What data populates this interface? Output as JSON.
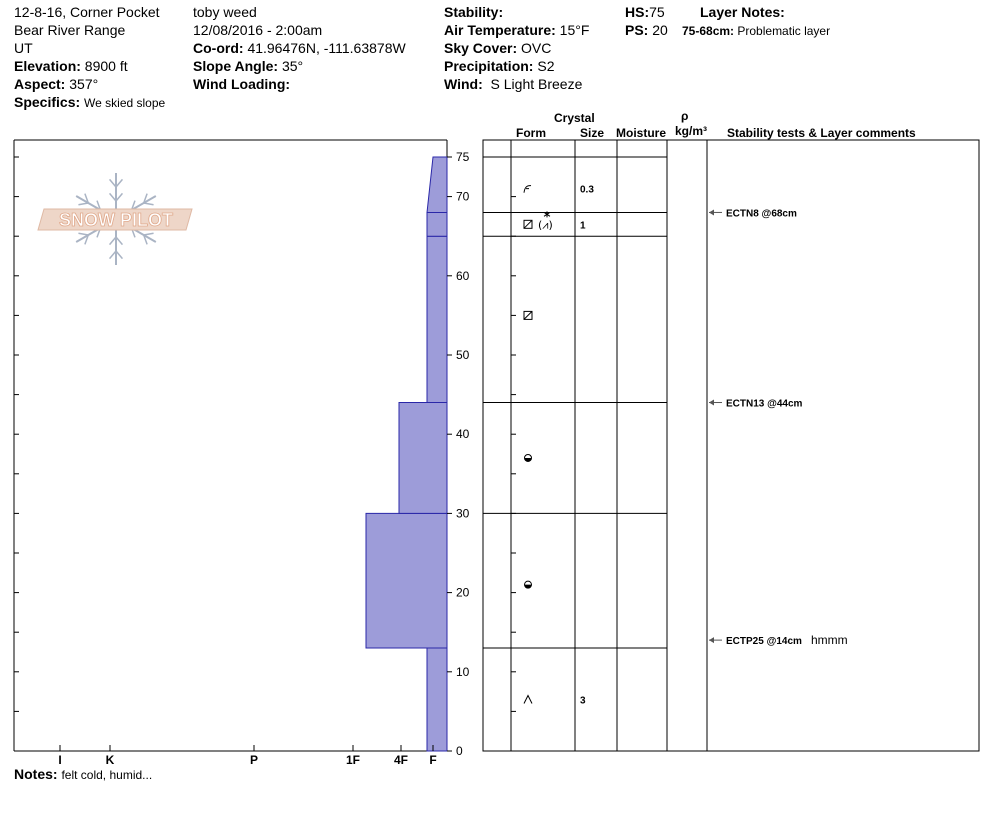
{
  "header": {
    "col1": {
      "line1": "12-8-16, Corner Pocket",
      "line2": "Bear River Range",
      "line3": "UT",
      "elevation_label": "Elevation:",
      "elevation_value": "8900 ft",
      "aspect_label": "Aspect:",
      "aspect_value": "357°",
      "specifics_label": "Specifics:",
      "specifics_value": "We skied slope"
    },
    "col2": {
      "observer": "toby weed",
      "datetime": "12/08/2016 - 2:00am",
      "coord_label": "Co-ord:",
      "coord_value": "41.96476N, -111.63878W",
      "slope_label": "Slope Angle:",
      "slope_value": "35°",
      "wind_loading_label": "Wind Loading:",
      "wind_loading_value": ""
    },
    "col3": {
      "stability_label": "Stability:",
      "stability_value": "",
      "air_temp_label": "Air Temperature:",
      "air_temp_value": "15°F",
      "sky_label": "Sky Cover:",
      "sky_value": "OVC",
      "precip_label": "Precipitation:",
      "precip_value": "S2",
      "wind_label": "Wind:",
      "wind_value": "S Light Breeze"
    },
    "col4": {
      "hs_label": "HS:",
      "hs_value": "75",
      "ps_label": "PS:",
      "ps_value": "20",
      "layer_notes_label": "Layer Notes:",
      "layer_note_range": "75-68cm:",
      "layer_note_text": "Problematic layer"
    }
  },
  "notes": {
    "label": "Notes:",
    "text": "felt cold, humid..."
  },
  "logo": {
    "text": "SNOW PILOT"
  },
  "table_headers": {
    "crystal": "Crystal",
    "form": "Form",
    "size": "Size",
    "moisture": "Moisture",
    "rho": "ρ",
    "density_unit": "kg/m³",
    "stability": "Stability tests & Layer comments"
  },
  "colors": {
    "hardness_fill": "#9d9cd9",
    "hardness_stroke": "#2a27a8",
    "line": "#000000"
  },
  "chart_data": {
    "type": "area",
    "ylabel": "",
    "ylim": [
      0,
      75
    ],
    "y_ticks": [
      0,
      10,
      20,
      30,
      40,
      50,
      60,
      70,
      75
    ],
    "hardness_scale": [
      "I",
      "K",
      "P",
      "1F",
      "4F",
      "F"
    ],
    "hardness_profile": [
      {
        "from": 0,
        "to": 13,
        "hardness": "F"
      },
      {
        "from": 13,
        "to": 30,
        "hardness": "1F+"
      },
      {
        "from": 30,
        "to": 44,
        "hardness": "4F"
      },
      {
        "from": 44,
        "to": 65,
        "hardness": "F"
      },
      {
        "from": 65,
        "to": 68,
        "hardness": "F"
      },
      {
        "from": 68,
        "to": 75,
        "hardness": "F"
      }
    ],
    "layers": [
      {
        "top": 75,
        "bottom": 68,
        "form": "decomposing-fragments",
        "size": "0.3"
      },
      {
        "top": 68,
        "bottom": 65,
        "form": "faceted-rounded-stellar",
        "size": "1"
      },
      {
        "top": 65,
        "bottom": 44,
        "form": "faceted",
        "size": ""
      },
      {
        "top": 44,
        "bottom": 30,
        "form": "melt-form",
        "size": ""
      },
      {
        "top": 30,
        "bottom": 13,
        "form": "melt-form",
        "size": ""
      },
      {
        "top": 13,
        "bottom": 0,
        "form": "depth-hoar",
        "size": "3"
      }
    ],
    "tests": [
      {
        "depth": 68,
        "label": "ECTN8 @68cm",
        "comment": ""
      },
      {
        "depth": 44,
        "label": "ECTN13 @44cm",
        "comment": ""
      },
      {
        "depth": 14,
        "label": "ECTP25 @14cm",
        "comment": "hmmm"
      }
    ]
  }
}
